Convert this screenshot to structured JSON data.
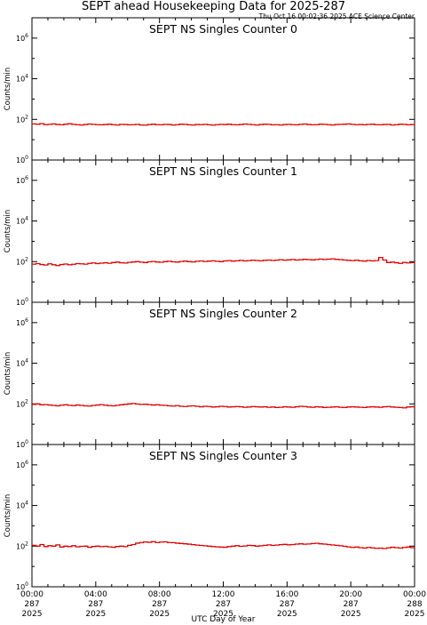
{
  "title": "SEPT ahead Housekeeping Data for 2025-287",
  "timestamp": "Thu Oct 16 00:02:36 2025 ACE Science Center",
  "xlabel": "UTC Day of Year",
  "colors": {
    "series": "#e00000",
    "panel_title": "#0000ee",
    "axis": "#000000"
  },
  "chart_data": [
    {
      "type": "line",
      "title": "SEPT NS Singles Counter 0",
      "ylabel": "Counts/min",
      "yscale": "log",
      "ylim": [
        1,
        10000000
      ],
      "yticks": [
        1,
        100,
        10000,
        1000000
      ],
      "xlim": [
        0,
        24
      ],
      "x_units": "hours UTC on day 287",
      "series": [
        {
          "x_step": 0.25,
          "values": [
            60,
            58,
            62,
            55,
            57,
            60,
            56,
            54,
            58,
            61,
            57,
            55,
            53,
            56,
            59,
            57,
            55,
            54,
            56,
            58,
            55,
            53,
            57,
            56,
            54,
            55,
            57,
            53,
            52,
            56,
            58,
            55,
            54,
            57,
            56,
            53,
            55,
            58,
            57,
            54,
            53,
            56,
            55,
            57,
            54,
            52,
            55,
            57,
            56,
            58,
            55,
            54,
            56,
            59,
            57,
            55,
            53,
            56,
            58,
            57,
            54,
            55,
            53,
            56,
            57,
            55,
            54,
            57,
            59,
            56,
            54,
            55,
            58,
            57,
            55,
            53,
            56,
            57,
            58,
            60,
            57,
            55,
            56,
            54,
            57,
            58,
            55,
            54,
            56,
            57,
            53,
            55,
            58,
            57,
            54,
            56
          ]
        }
      ]
    },
    {
      "type": "line",
      "title": "SEPT NS Singles Counter 1",
      "ylabel": "Counts/min",
      "yscale": "log",
      "ylim": [
        1,
        10000000
      ],
      "yticks": [
        1,
        100,
        10000,
        1000000
      ],
      "xlim": [
        0,
        24
      ],
      "x_units": "hours UTC on day 287",
      "series": [
        {
          "x_step": 0.25,
          "values": [
            75,
            80,
            72,
            68,
            78,
            70,
            64,
            72,
            76,
            70,
            74,
            80,
            78,
            75,
            82,
            86,
            80,
            84,
            88,
            83,
            90,
            95,
            88,
            85,
            92,
            96,
            100,
            94,
            90,
            98,
            102,
            96,
            93,
            100,
            104,
            98,
            95,
            102,
            106,
            100,
            97,
            104,
            108,
            102,
            106,
            110,
            104,
            100,
            108,
            112,
            106,
            110,
            115,
            108,
            112,
            118,
            114,
            110,
            116,
            120,
            114,
            118,
            124,
            118,
            122,
            128,
            120,
            124,
            130,
            126,
            122,
            128,
            134,
            128,
            132,
            138,
            130,
            126,
            120,
            116,
            112,
            118,
            110,
            106,
            114,
            108,
            112,
            160,
            120,
            90,
            95,
            88,
            82,
            92,
            86,
            90
          ]
        }
      ]
    },
    {
      "type": "line",
      "title": "SEPT NS Singles Counter 2",
      "ylabel": "Counts/min",
      "yscale": "log",
      "ylim": [
        1,
        10000000
      ],
      "yticks": [
        1,
        100,
        10000,
        1000000
      ],
      "xlim": [
        0,
        24
      ],
      "x_units": "hours UTC on day 287",
      "series": [
        {
          "x_step": 0.25,
          "values": [
            95,
            100,
            90,
            92,
            88,
            84,
            80,
            86,
            90,
            85,
            82,
            88,
            84,
            80,
            78,
            84,
            88,
            92,
            86,
            82,
            80,
            85,
            90,
            95,
            100,
            104,
            98,
            94,
            96,
            92,
            88,
            90,
            86,
            84,
            80,
            78,
            82,
            76,
            74,
            78,
            80,
            76,
            72,
            76,
            74,
            70,
            72,
            76,
            74,
            70,
            72,
            74,
            72,
            68,
            70,
            74,
            72,
            70,
            72,
            68,
            70,
            66,
            68,
            72,
            70,
            68,
            72,
            76,
            74,
            70,
            68,
            72,
            70,
            66,
            68,
            70,
            72,
            68,
            66,
            70,
            72,
            70,
            68,
            66,
            70,
            72,
            70,
            68,
            72,
            74,
            70,
            68,
            66,
            64,
            70,
            72
          ]
        }
      ]
    },
    {
      "type": "line",
      "title": "SEPT NS Singles Counter 3",
      "ylabel": "Counts/min",
      "yscale": "log",
      "ylim": [
        1,
        10000000
      ],
      "yticks": [
        1,
        100,
        10000,
        1000000
      ],
      "xlim": [
        0,
        24
      ],
      "x_units": "hours UTC on day 287",
      "series": [
        {
          "x_step": 0.25,
          "values": [
            110,
            100,
            120,
            95,
            105,
            100,
            115,
            90,
            100,
            95,
            105,
            92,
            98,
            100,
            88,
            96,
            100,
            94,
            98,
            92,
            88,
            96,
            100,
            94,
            110,
            120,
            140,
            150,
            160,
            155,
            165,
            150,
            158,
            162,
            150,
            148,
            140,
            135,
            130,
            125,
            118,
            112,
            108,
            104,
            100,
            95,
            92,
            90,
            88,
            95,
            100,
            105,
            98,
            102,
            110,
            106,
            100,
            104,
            110,
            115,
            108,
            112,
            118,
            122,
            116,
            120,
            126,
            130,
            124,
            128,
            134,
            138,
            130,
            126,
            120,
            114,
            110,
            104,
            98,
            92,
            86,
            90,
            84,
            80,
            86,
            82,
            78,
            80,
            76,
            82,
            88,
            84,
            80,
            86,
            90,
            84
          ]
        }
      ]
    }
  ],
  "x_ticks": [
    {
      "time": "00:00",
      "day": "287",
      "year": "2025"
    },
    {
      "time": "04:00",
      "day": "287",
      "year": "2025"
    },
    {
      "time": "08:00",
      "day": "287",
      "year": "2025"
    },
    {
      "time": "12:00",
      "day": "287",
      "year": "2025"
    },
    {
      "time": "16:00",
      "day": "287",
      "year": "2025"
    },
    {
      "time": "20:00",
      "day": "287",
      "year": "2025"
    },
    {
      "time": "00:00",
      "day": "288",
      "year": "2025"
    }
  ]
}
